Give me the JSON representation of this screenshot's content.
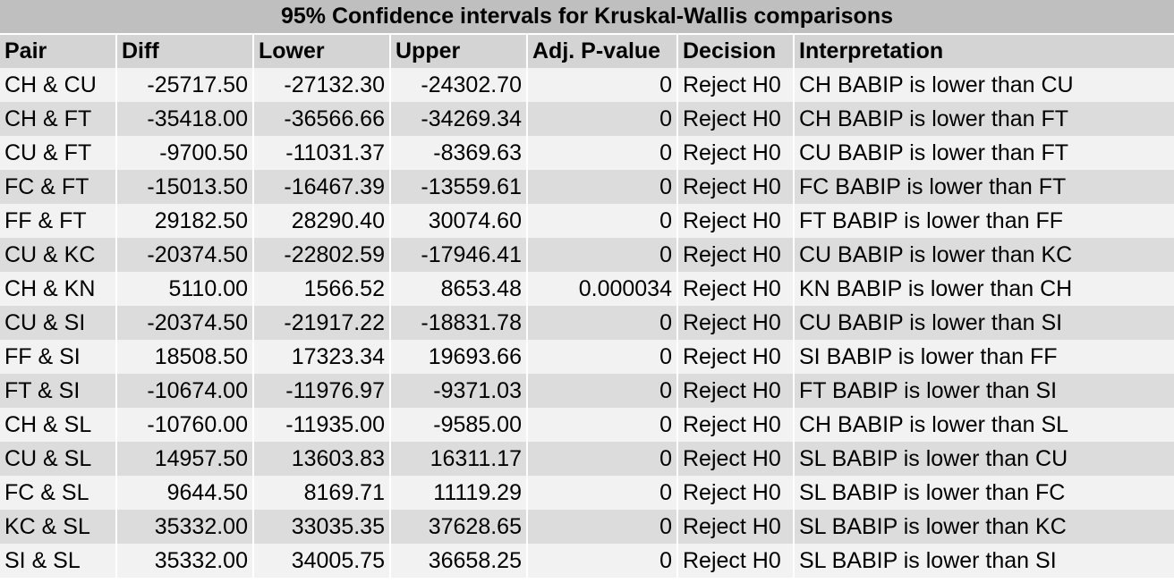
{
  "table": {
    "title": "95% Confidence intervals for Kruskal-Wallis comparisons",
    "columns": [
      "Pair",
      "Diff",
      "Lower",
      "Upper",
      "Adj. P-value",
      "Decision",
      "Interpretation"
    ],
    "rows": [
      [
        "CH & CU",
        "-25717.50",
        "-27132.30",
        "-24302.70",
        "0",
        "Reject H0",
        "CH BABIP is lower than CU"
      ],
      [
        "CH & FT",
        "-35418.00",
        "-36566.66",
        "-34269.34",
        "0",
        "Reject H0",
        "CH BABIP is lower than FT"
      ],
      [
        "CU & FT",
        "-9700.50",
        "-11031.37",
        "-8369.63",
        "0",
        "Reject H0",
        "CU BABIP is lower than FT"
      ],
      [
        "FC & FT",
        "-15013.50",
        "-16467.39",
        "-13559.61",
        "0",
        "Reject H0",
        "FC BABIP is lower than FT"
      ],
      [
        "FF & FT",
        "29182.50",
        "28290.40",
        "30074.60",
        "0",
        "Reject H0",
        "FT BABIP is lower than FF"
      ],
      [
        "CU & KC",
        "-20374.50",
        "-22802.59",
        "-17946.41",
        "0",
        "Reject H0",
        "CU BABIP is lower than KC"
      ],
      [
        "CH & KN",
        "5110.00",
        "1566.52",
        "8653.48",
        "0.000034",
        "Reject H0",
        "KN BABIP is lower than CH"
      ],
      [
        "CU & SI",
        "-20374.50",
        "-21917.22",
        "-18831.78",
        "0",
        "Reject H0",
        "CU BABIP is lower than SI"
      ],
      [
        "FF & SI",
        "18508.50",
        "17323.34",
        "19693.66",
        "0",
        "Reject H0",
        "SI BABIP is lower than FF"
      ],
      [
        "FT & SI",
        "-10674.00",
        "-11976.97",
        "-9371.03",
        "0",
        "Reject H0",
        "FT BABIP is lower than SI"
      ],
      [
        "CH & SL",
        "-10760.00",
        "-11935.00",
        "-9585.00",
        "0",
        "Reject H0",
        "CH BABIP is lower than SL"
      ],
      [
        "CU & SL",
        "14957.50",
        "13603.83",
        "16311.17",
        "0",
        "Reject H0",
        "SL BABIP is lower than CU"
      ],
      [
        "FC & SL",
        "9644.50",
        "8169.71",
        "11119.29",
        "0",
        "Reject H0",
        "SL BABIP is lower than FC"
      ],
      [
        "KC & SL",
        "35332.00",
        "33035.35",
        "37628.65",
        "0",
        "Reject H0",
        "SL BABIP is lower than KC"
      ],
      [
        "SI & SL",
        "35332.00",
        "34005.75",
        "36658.25",
        "0",
        "Reject H0",
        "SL BABIP is lower than SI"
      ]
    ]
  },
  "colors": {
    "title_bg": "#bfbfbf",
    "header_bg": "#d4d4d4",
    "row_light": "#f2f2f2",
    "row_dark": "#dcdcdc"
  }
}
